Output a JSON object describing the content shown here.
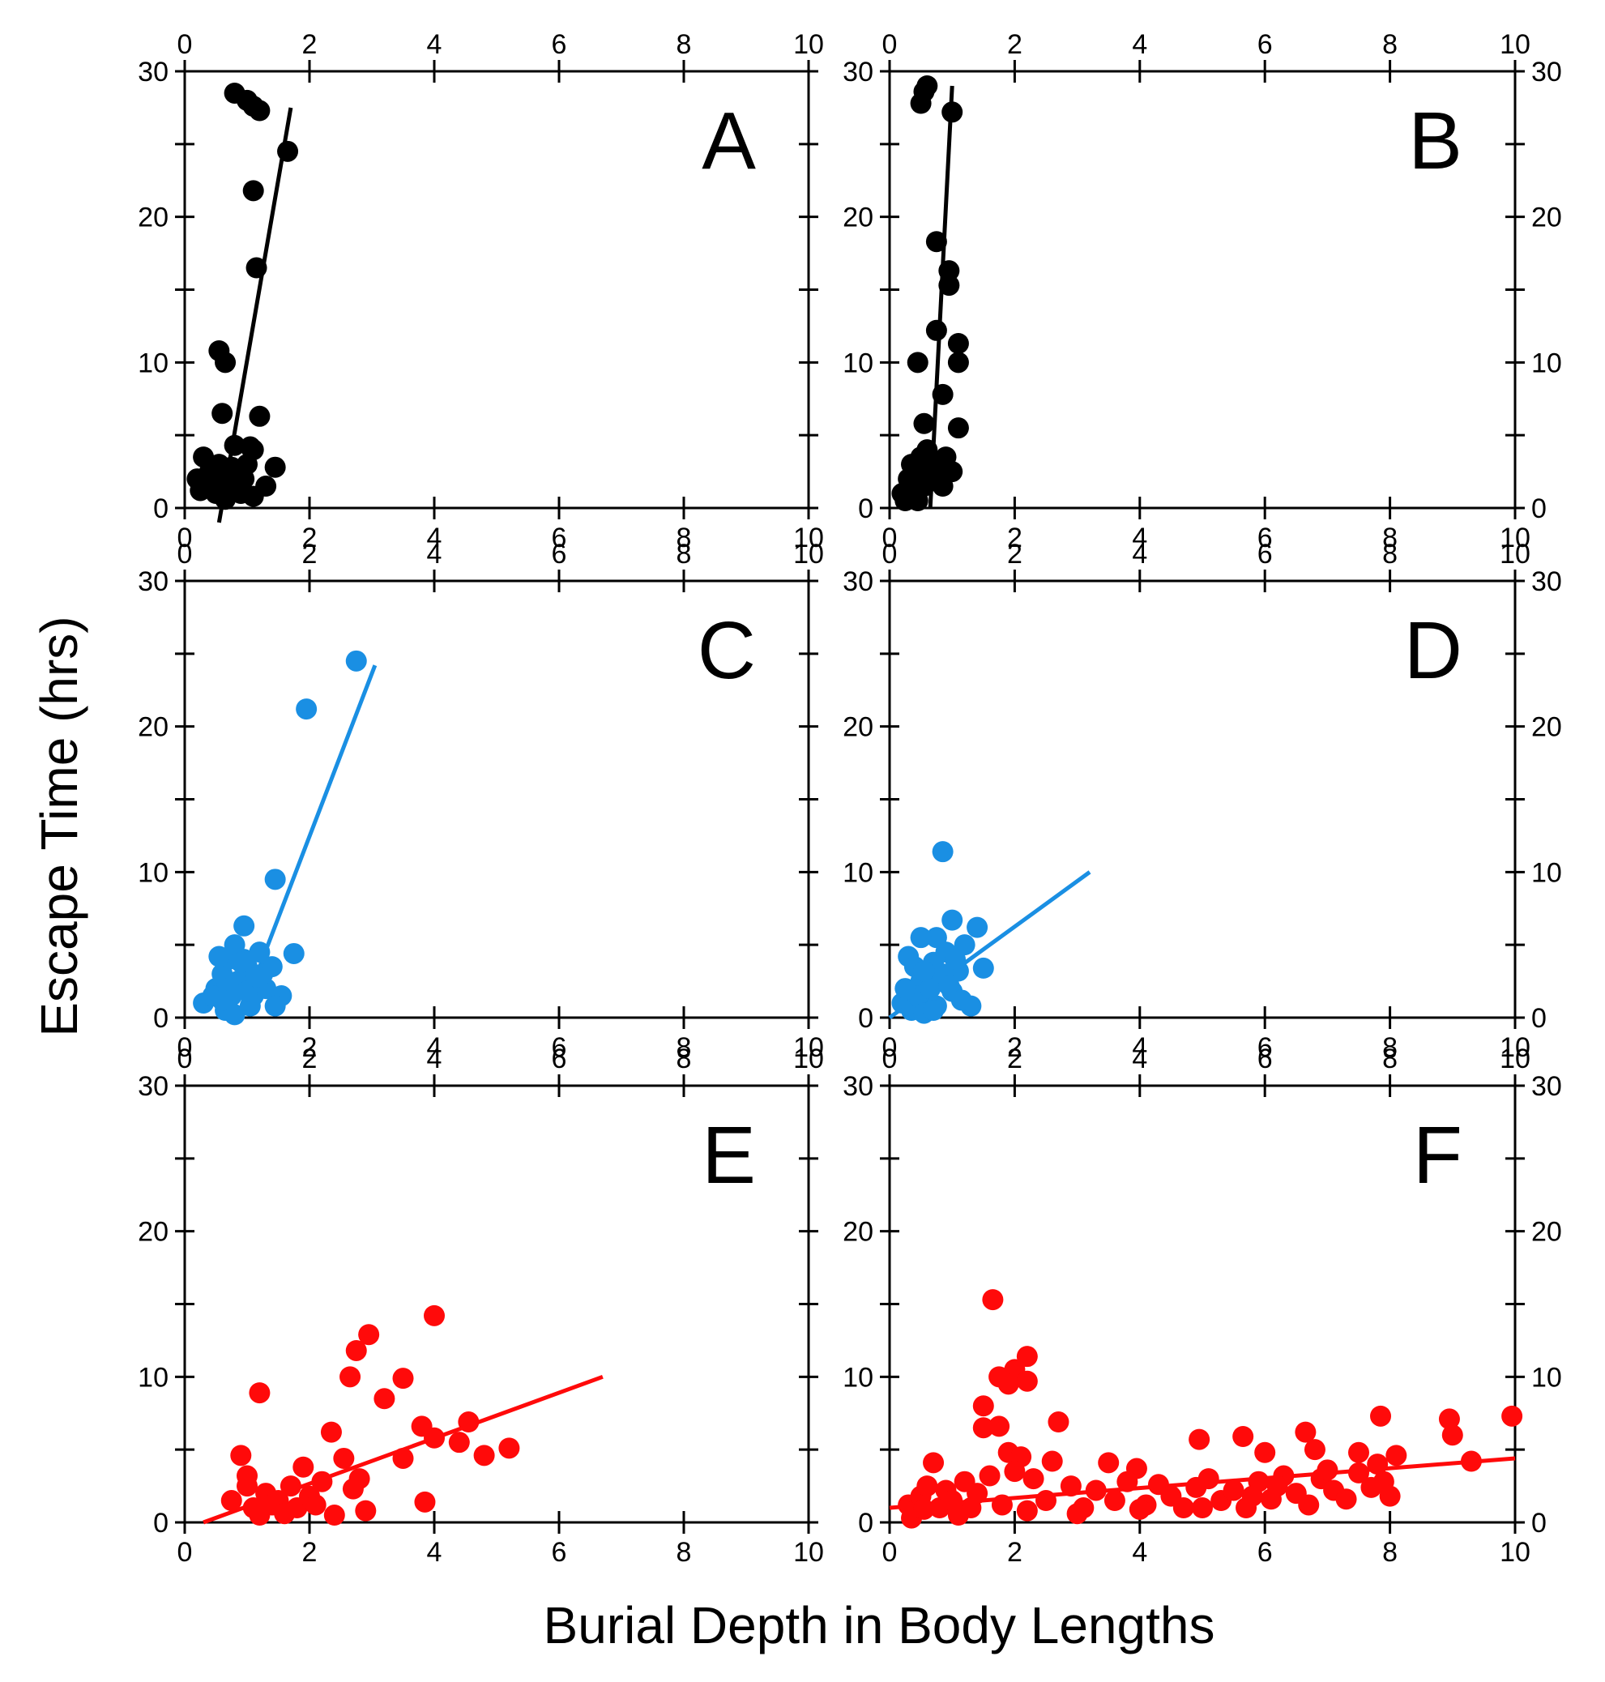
{
  "figure": {
    "ylabel": "Escape Time (hrs)",
    "xlabel": "Burial Depth in Body Lengths"
  },
  "colors": {
    "black": "#000000",
    "blue": "#1a8fe3",
    "red": "#ff0a0a"
  },
  "chart_data": [
    {
      "type": "scatter",
      "label": "A",
      "color": "black",
      "xlim": [
        0,
        10
      ],
      "ylim": [
        0,
        30
      ],
      "xticks": [
        0,
        2,
        4,
        6,
        8,
        10
      ],
      "yticks": [
        0,
        10,
        20,
        30
      ],
      "points": [
        [
          0.8,
          28.5
        ],
        [
          1.0,
          28.0
        ],
        [
          1.1,
          27.6
        ],
        [
          1.2,
          27.3
        ],
        [
          1.65,
          24.5
        ],
        [
          1.1,
          21.8
        ],
        [
          1.15,
          16.5
        ],
        [
          0.55,
          10.8
        ],
        [
          0.65,
          10.0
        ],
        [
          0.6,
          6.5
        ],
        [
          1.2,
          6.3
        ],
        [
          0.8,
          4.3
        ],
        [
          1.05,
          4.2
        ],
        [
          1.1,
          4.0
        ],
        [
          0.3,
          3.5
        ],
        [
          0.55,
          3.0
        ],
        [
          0.75,
          2.8
        ],
        [
          0.9,
          2.5
        ],
        [
          1.0,
          3.0
        ],
        [
          1.45,
          2.8
        ],
        [
          0.2,
          2.0
        ],
        [
          0.35,
          1.5
        ],
        [
          0.5,
          1.0
        ],
        [
          0.7,
          1.5
        ],
        [
          0.9,
          1.0
        ],
        [
          1.1,
          0.8
        ],
        [
          1.3,
          1.5
        ],
        [
          0.4,
          2.5
        ],
        [
          0.6,
          1.8
        ],
        [
          0.95,
          2.0
        ],
        [
          0.25,
          1.2
        ],
        [
          0.65,
          0.6
        ]
      ],
      "fit": [
        [
          0.55,
          -1.0
        ],
        [
          1.7,
          27.5
        ]
      ]
    },
    {
      "type": "scatter",
      "label": "B",
      "color": "black",
      "xlim": [
        0,
        10
      ],
      "ylim": [
        0,
        30
      ],
      "xticks": [
        0,
        2,
        4,
        6,
        8,
        10
      ],
      "yticks": [
        0,
        10,
        20,
        30
      ],
      "points": [
        [
          0.6,
          29.0
        ],
        [
          0.55,
          28.6
        ],
        [
          0.5,
          27.8
        ],
        [
          1.0,
          27.2
        ],
        [
          0.75,
          18.3
        ],
        [
          0.95,
          16.3
        ],
        [
          0.95,
          15.3
        ],
        [
          1.1,
          11.3
        ],
        [
          1.1,
          10.0
        ],
        [
          0.45,
          10.0
        ],
        [
          0.75,
          12.2
        ],
        [
          0.85,
          7.8
        ],
        [
          0.55,
          5.8
        ],
        [
          1.1,
          5.5
        ],
        [
          0.3,
          2.0
        ],
        [
          0.35,
          3.0
        ],
        [
          0.4,
          1.5
        ],
        [
          0.5,
          3.5
        ],
        [
          0.6,
          4.0
        ],
        [
          0.7,
          2.5
        ],
        [
          0.8,
          2.0
        ],
        [
          0.9,
          3.5
        ],
        [
          1.0,
          2.5
        ],
        [
          0.2,
          1.0
        ],
        [
          0.25,
          0.5
        ],
        [
          0.45,
          0.5
        ],
        [
          0.55,
          1.5
        ],
        [
          0.65,
          2.8
        ],
        [
          0.75,
          3.2
        ],
        [
          0.85,
          1.5
        ],
        [
          0.4,
          2.2
        ]
      ],
      "fit": [
        [
          0.65,
          0.0
        ],
        [
          1.0,
          29.0
        ]
      ]
    },
    {
      "type": "scatter",
      "label": "C",
      "color": "blue",
      "xlim": [
        0,
        10
      ],
      "ylim": [
        0,
        30
      ],
      "xticks": [
        0,
        2,
        4,
        6,
        8,
        10
      ],
      "yticks": [
        0,
        10,
        20,
        30
      ],
      "points": [
        [
          2.75,
          24.5
        ],
        [
          1.95,
          21.2
        ],
        [
          1.45,
          9.5
        ],
        [
          0.95,
          6.3
        ],
        [
          1.75,
          4.4
        ],
        [
          0.3,
          1.0
        ],
        [
          0.5,
          2.0
        ],
        [
          0.6,
          3.0
        ],
        [
          0.7,
          4.0
        ],
        [
          0.8,
          5.0
        ],
        [
          0.9,
          2.5
        ],
        [
          1.0,
          3.5
        ],
        [
          1.1,
          1.5
        ],
        [
          1.2,
          4.5
        ],
        [
          1.3,
          2.0
        ],
        [
          1.4,
          3.5
        ],
        [
          1.55,
          1.5
        ],
        [
          0.65,
          0.5
        ],
        [
          0.75,
          1.5
        ],
        [
          0.85,
          2.5
        ],
        [
          0.95,
          4.0
        ],
        [
          1.05,
          0.8
        ],
        [
          0.45,
          1.5
        ],
        [
          1.25,
          3.0
        ],
        [
          0.55,
          4.2
        ],
        [
          0.7,
          2.0
        ],
        [
          1.0,
          1.8
        ],
        [
          1.45,
          0.8
        ],
        [
          0.8,
          0.2
        ],
        [
          1.15,
          2.8
        ],
        [
          0.6,
          1.2
        ],
        [
          0.9,
          3.8
        ]
      ],
      "fit": [
        [
          1.2,
          3.5
        ],
        [
          3.05,
          24.2
        ]
      ]
    },
    {
      "type": "scatter",
      "label": "D",
      "color": "blue",
      "xlim": [
        0,
        10
      ],
      "ylim": [
        0,
        30
      ],
      "xticks": [
        0,
        2,
        4,
        6,
        8,
        10
      ],
      "yticks": [
        0,
        10,
        20,
        30
      ],
      "points": [
        [
          0.85,
          11.4
        ],
        [
          1.0,
          6.7
        ],
        [
          0.75,
          5.5
        ],
        [
          0.5,
          5.5
        ],
        [
          1.4,
          6.2
        ],
        [
          0.3,
          4.2
        ],
        [
          0.4,
          3.5
        ],
        [
          0.5,
          2.5
        ],
        [
          0.6,
          1.5
        ],
        [
          0.7,
          3.8
        ],
        [
          0.8,
          2.5
        ],
        [
          0.9,
          4.5
        ],
        [
          1.0,
          1.8
        ],
        [
          1.1,
          3.2
        ],
        [
          1.2,
          5.0
        ],
        [
          1.3,
          0.8
        ],
        [
          1.5,
          3.4
        ],
        [
          0.2,
          1.0
        ],
        [
          0.35,
          0.5
        ],
        [
          0.45,
          1.5
        ],
        [
          0.55,
          0.3
        ],
        [
          0.65,
          2.0
        ],
        [
          0.75,
          0.8
        ],
        [
          0.85,
          3.0
        ],
        [
          0.95,
          2.2
        ],
        [
          1.05,
          4.0
        ],
        [
          0.25,
          2.0
        ],
        [
          0.55,
          3.2
        ],
        [
          0.7,
          0.5
        ],
        [
          1.15,
          1.2
        ]
      ],
      "fit": [
        [
          0.0,
          0.0
        ],
        [
          3.2,
          10.0
        ]
      ]
    },
    {
      "type": "scatter",
      "label": "E",
      "color": "red",
      "xlim": [
        0,
        10
      ],
      "ylim": [
        0,
        30
      ],
      "xticks": [
        0,
        2,
        4,
        6,
        8,
        10
      ],
      "yticks": [
        0,
        10,
        20,
        30
      ],
      "points": [
        [
          4.0,
          14.2
        ],
        [
          2.95,
          12.9
        ],
        [
          2.75,
          11.8
        ],
        [
          2.65,
          10.0
        ],
        [
          1.2,
          8.9
        ],
        [
          3.5,
          9.9
        ],
        [
          3.2,
          8.5
        ],
        [
          2.35,
          6.2
        ],
        [
          3.8,
          6.6
        ],
        [
          4.0,
          5.8
        ],
        [
          4.55,
          6.9
        ],
        [
          4.4,
          5.5
        ],
        [
          5.2,
          5.1
        ],
        [
          4.8,
          4.6
        ],
        [
          3.5,
          4.4
        ],
        [
          2.55,
          4.4
        ],
        [
          0.9,
          4.6
        ],
        [
          1.9,
          3.8
        ],
        [
          3.85,
          1.4
        ],
        [
          0.75,
          1.5
        ],
        [
          1.0,
          2.5
        ],
        [
          1.1,
          1.0
        ],
        [
          1.2,
          0.5
        ],
        [
          1.3,
          2.0
        ],
        [
          1.5,
          1.5
        ],
        [
          1.7,
          2.5
        ],
        [
          1.8,
          1.0
        ],
        [
          2.0,
          1.8
        ],
        [
          2.2,
          2.8
        ],
        [
          2.4,
          0.5
        ],
        [
          2.7,
          2.3
        ],
        [
          2.8,
          3.0
        ],
        [
          2.9,
          0.8
        ],
        [
          1.0,
          3.2
        ],
        [
          1.4,
          1.2
        ],
        [
          1.6,
          0.6
        ],
        [
          2.1,
          1.2
        ]
      ],
      "fit": [
        [
          0.3,
          0.0
        ],
        [
          6.7,
          10.0
        ]
      ]
    },
    {
      "type": "scatter",
      "label": "F",
      "color": "red",
      "xlim": [
        0,
        10
      ],
      "ylim": [
        0,
        30
      ],
      "xticks": [
        0,
        2,
        4,
        6,
        8,
        10
      ],
      "yticks": [
        0,
        10,
        20,
        30
      ],
      "points": [
        [
          1.65,
          15.3
        ],
        [
          2.2,
          11.4
        ],
        [
          2.0,
          10.5
        ],
        [
          1.75,
          10.0
        ],
        [
          1.9,
          9.5
        ],
        [
          2.2,
          9.7
        ],
        [
          1.5,
          8.0
        ],
        [
          1.5,
          6.5
        ],
        [
          1.75,
          6.6
        ],
        [
          2.7,
          6.9
        ],
        [
          1.9,
          4.8
        ],
        [
          2.1,
          4.5
        ],
        [
          0.7,
          4.1
        ],
        [
          2.6,
          4.2
        ],
        [
          2.0,
          3.5
        ],
        [
          2.3,
          3.0
        ],
        [
          1.6,
          3.2
        ],
        [
          9.95,
          7.3
        ],
        [
          8.95,
          7.1
        ],
        [
          9.0,
          6.0
        ],
        [
          7.85,
          7.3
        ],
        [
          6.65,
          6.2
        ],
        [
          5.65,
          5.9
        ],
        [
          4.95,
          5.7
        ],
        [
          8.1,
          4.6
        ],
        [
          9.3,
          4.2
        ],
        [
          6.0,
          4.8
        ],
        [
          7.5,
          4.8
        ],
        [
          3.5,
          4.1
        ],
        [
          3.95,
          3.7
        ],
        [
          6.8,
          5.0
        ],
        [
          0.3,
          1.2
        ],
        [
          0.4,
          0.8
        ],
        [
          0.5,
          1.8
        ],
        [
          0.6,
          2.5
        ],
        [
          0.8,
          1.0
        ],
        [
          0.9,
          2.2
        ],
        [
          1.0,
          1.5
        ],
        [
          1.2,
          2.8
        ],
        [
          1.3,
          1.0
        ],
        [
          1.4,
          2.0
        ],
        [
          2.5,
          1.5
        ],
        [
          2.9,
          2.5
        ],
        [
          3.1,
          1.0
        ],
        [
          3.3,
          2.2
        ],
        [
          3.6,
          1.5
        ],
        [
          3.8,
          2.8
        ],
        [
          4.1,
          1.2
        ],
        [
          4.3,
          2.6
        ],
        [
          4.5,
          1.8
        ],
        [
          4.7,
          1.0
        ],
        [
          4.9,
          2.4
        ],
        [
          5.1,
          3.0
        ],
        [
          5.3,
          1.5
        ],
        [
          5.5,
          2.2
        ],
        [
          5.7,
          1.0
        ],
        [
          5.9,
          2.8
        ],
        [
          6.1,
          1.6
        ],
        [
          6.3,
          3.2
        ],
        [
          6.5,
          2.0
        ],
        [
          6.7,
          1.2
        ],
        [
          6.9,
          3.0
        ],
        [
          7.1,
          2.2
        ],
        [
          7.3,
          1.6
        ],
        [
          7.5,
          3.4
        ],
        [
          7.7,
          2.4
        ],
        [
          7.9,
          2.8
        ],
        [
          8.0,
          1.8
        ],
        [
          0.35,
          0.3
        ],
        [
          1.1,
          0.5
        ],
        [
          1.8,
          1.2
        ],
        [
          2.2,
          0.8
        ],
        [
          3.0,
          0.6
        ],
        [
          4.0,
          0.9
        ],
        [
          5.0,
          1.0
        ],
        [
          5.8,
          1.8
        ],
        [
          6.2,
          2.5
        ],
        [
          7.0,
          3.6
        ],
        [
          7.8,
          4.0
        ],
        [
          0.55,
          0.9
        ]
      ],
      "fit": [
        [
          0.0,
          1.0
        ],
        [
          10.0,
          4.4
        ]
      ]
    }
  ]
}
